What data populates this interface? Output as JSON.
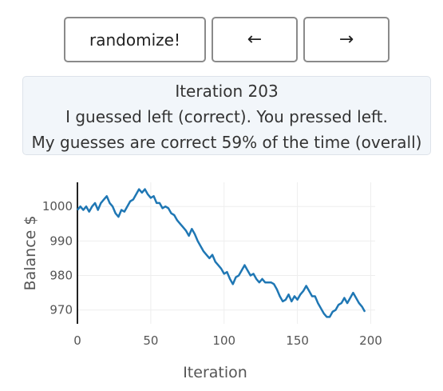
{
  "controls": {
    "randomize_label": "randomize!",
    "left_label": "←",
    "right_label": "→"
  },
  "info": {
    "iteration_line": "Iteration 203",
    "guess_line": "I guessed left (correct). You pressed left.",
    "accuracy_line": "My guesses are correct 59% of the time (overall)"
  },
  "colors": {
    "line": "#1f77b4",
    "grid": "#eeeeee",
    "axis": "#222222"
  },
  "chart_data": {
    "type": "line",
    "xlabel": "Iteration",
    "ylabel": "Balance $",
    "xlim": [
      0,
      203
    ],
    "ylim": [
      966,
      1007
    ],
    "xticks": [
      0,
      50,
      100,
      150,
      200
    ],
    "yticks": [
      970,
      980,
      990,
      1000
    ],
    "grid": true,
    "series": [
      {
        "points": [
          [
            0,
            999
          ],
          [
            2,
            1000
          ],
          [
            4,
            999
          ],
          [
            6,
            1000
          ],
          [
            8,
            998.5
          ],
          [
            10,
            1000
          ],
          [
            12,
            1001
          ],
          [
            14,
            999
          ],
          [
            16,
            1001
          ],
          [
            18,
            1002
          ],
          [
            20,
            1003
          ],
          [
            22,
            1001
          ],
          [
            24,
            1000
          ],
          [
            26,
            998
          ],
          [
            28,
            997
          ],
          [
            30,
            999
          ],
          [
            32,
            998.5
          ],
          [
            34,
            1000
          ],
          [
            36,
            1001.5
          ],
          [
            38,
            1002
          ],
          [
            40,
            1003.5
          ],
          [
            42,
            1005
          ],
          [
            44,
            1004
          ],
          [
            46,
            1005
          ],
          [
            48,
            1003.5
          ],
          [
            50,
            1002.5
          ],
          [
            52,
            1003
          ],
          [
            54,
            1001
          ],
          [
            56,
            1001
          ],
          [
            58,
            999.5
          ],
          [
            60,
            1000
          ],
          [
            62,
            999.5
          ],
          [
            64,
            998
          ],
          [
            66,
            997.5
          ],
          [
            68,
            996
          ],
          [
            70,
            995
          ],
          [
            72,
            994
          ],
          [
            74,
            993
          ],
          [
            76,
            991.5
          ],
          [
            78,
            993.5
          ],
          [
            80,
            992
          ],
          [
            82,
            990
          ],
          [
            84,
            988.5
          ],
          [
            86,
            987
          ],
          [
            88,
            986
          ],
          [
            90,
            985
          ],
          [
            92,
            986
          ],
          [
            94,
            984
          ],
          [
            96,
            983
          ],
          [
            98,
            982
          ],
          [
            100,
            980.5
          ],
          [
            102,
            981
          ],
          [
            104,
            979
          ],
          [
            106,
            977.5
          ],
          [
            108,
            979.5
          ],
          [
            110,
            980
          ],
          [
            112,
            981.5
          ],
          [
            114,
            983
          ],
          [
            116,
            981.5
          ],
          [
            118,
            980
          ],
          [
            120,
            980.5
          ],
          [
            122,
            979
          ],
          [
            124,
            978
          ],
          [
            126,
            979
          ],
          [
            128,
            978
          ],
          [
            130,
            978
          ],
          [
            132,
            978
          ],
          [
            134,
            977.5
          ],
          [
            136,
            976
          ],
          [
            138,
            974
          ],
          [
            140,
            972.5
          ],
          [
            142,
            973
          ],
          [
            144,
            974.5
          ],
          [
            146,
            972.5
          ],
          [
            148,
            974
          ],
          [
            150,
            973
          ],
          [
            152,
            974.5
          ],
          [
            154,
            975.5
          ],
          [
            156,
            977
          ],
          [
            158,
            975.5
          ],
          [
            160,
            974
          ],
          [
            162,
            974
          ],
          [
            164,
            972
          ],
          [
            166,
            970.5
          ],
          [
            168,
            969
          ],
          [
            170,
            968
          ],
          [
            172,
            968
          ],
          [
            174,
            969.5
          ],
          [
            176,
            970
          ],
          [
            178,
            971.5
          ],
          [
            180,
            972
          ],
          [
            182,
            973.5
          ],
          [
            184,
            972
          ],
          [
            186,
            973.5
          ],
          [
            188,
            975
          ],
          [
            190,
            973.5
          ],
          [
            192,
            972
          ],
          [
            194,
            971
          ],
          [
            196,
            969.5
          ]
        ]
      }
    ]
  }
}
